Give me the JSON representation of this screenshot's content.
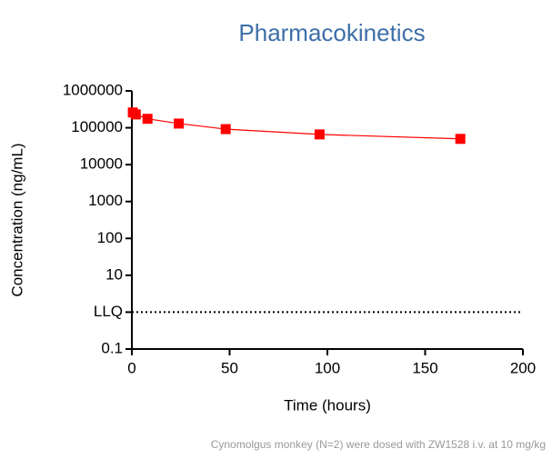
{
  "chart_data": {
    "type": "line",
    "title": "Pharmacokinetics",
    "x_label": "Time (hours)",
    "y_label": "Concentration (ng/mL)",
    "note": "Cynomolgus monkey (N=2) were dosed with ZW1528 i.v. at 10 mg/kg",
    "x": [
      0.5,
      2,
      8,
      24,
      48,
      96,
      168
    ],
    "series": [
      {
        "name": "ZW1528",
        "color": "#ff0000",
        "values": [
          260000,
          230000,
          175000,
          130000,
          92000,
          66000,
          50000
        ]
      }
    ],
    "xlim": [
      0,
      200
    ],
    "xticks": [
      0,
      50,
      100,
      150,
      200
    ],
    "ylim": [
      0.1,
      1000000
    ],
    "yscale": "log",
    "yticks": [
      0.1,
      {
        "value": 1,
        "label": "LLQ"
      },
      10,
      100,
      1000,
      10000,
      100000,
      1000000
    ],
    "hline": {
      "value": 1,
      "style": "dotted"
    }
  }
}
